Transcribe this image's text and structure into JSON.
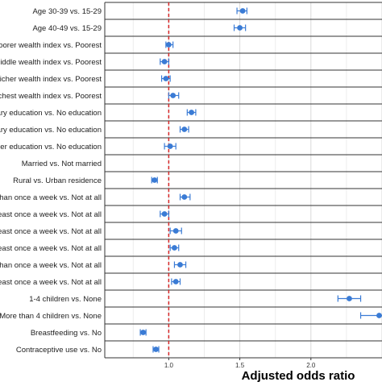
{
  "chart_data": {
    "type": "scatter",
    "subtype": "forest-plot",
    "xlabel": "Adjusted odds ratio",
    "ylabel": "",
    "xlim": [
      0.55,
      2.5
    ],
    "x_ticks": [
      1.0,
      1.5,
      2.0
    ],
    "x_tick_labels": [
      "1.0",
      "1.5",
      "2.0"
    ],
    "reference_line": 1.0,
    "reference_line_color": "#d62728",
    "point_color": "#3a7bd5",
    "grid": true,
    "categories": [
      "Age 30-39 vs. 15-29",
      "Age 40-49 vs. 15-29",
      "Poorer wealth index vs. Poorest",
      "Middle wealth index vs. Poorest",
      "Richer wealth index vs. Poorest",
      "Richest wealth index vs. Poorest",
      "Primary education vs. No education",
      "Secondary education  vs. No education",
      "Higher education vs. No education",
      "Married vs. Not married",
      "Rural vs. Urban residence",
      "Less than once a week vs. Not at all",
      "At least once a week vs. Not at all",
      "At least once a week vs. Not at all",
      "At least once a week vs. Not at all",
      "Less than once a week vs. Not at all",
      "At least once a week vs. Not at all",
      "1-4 children vs. None",
      "More than 4 children vs. None",
      "Breastfeeding vs. No",
      "Contraceptive use vs. No"
    ],
    "points": [
      {
        "or": 1.52,
        "lo": 1.48,
        "hi": 1.55
      },
      {
        "or": 1.5,
        "lo": 1.46,
        "hi": 1.54
      },
      {
        "or": 1.0,
        "lo": 0.98,
        "hi": 1.03
      },
      {
        "or": 0.97,
        "lo": 0.94,
        "hi": 1.0
      },
      {
        "or": 0.98,
        "lo": 0.95,
        "hi": 1.01
      },
      {
        "or": 1.03,
        "lo": 1.0,
        "hi": 1.07
      },
      {
        "or": 1.16,
        "lo": 1.13,
        "hi": 1.19
      },
      {
        "or": 1.11,
        "lo": 1.08,
        "hi": 1.14
      },
      {
        "or": 1.01,
        "lo": 0.97,
        "hi": 1.05
      },
      {
        "or": null,
        "lo": null,
        "hi": null
      },
      {
        "or": 0.9,
        "lo": 0.88,
        "hi": 0.92
      },
      {
        "or": 1.11,
        "lo": 1.08,
        "hi": 1.15
      },
      {
        "or": 0.97,
        "lo": 0.94,
        "hi": 1.0
      },
      {
        "or": 1.05,
        "lo": 1.01,
        "hi": 1.09
      },
      {
        "or": 1.04,
        "lo": 1.01,
        "hi": 1.07
      },
      {
        "or": 1.08,
        "lo": 1.04,
        "hi": 1.12
      },
      {
        "or": 1.05,
        "lo": 1.02,
        "hi": 1.08
      },
      {
        "or": 2.27,
        "lo": 2.19,
        "hi": 2.35
      },
      {
        "or": 2.48,
        "lo": 2.35,
        "hi": 2.6
      },
      {
        "or": 0.82,
        "lo": 0.8,
        "hi": 0.84
      },
      {
        "or": 0.91,
        "lo": 0.89,
        "hi": 0.93
      }
    ]
  }
}
